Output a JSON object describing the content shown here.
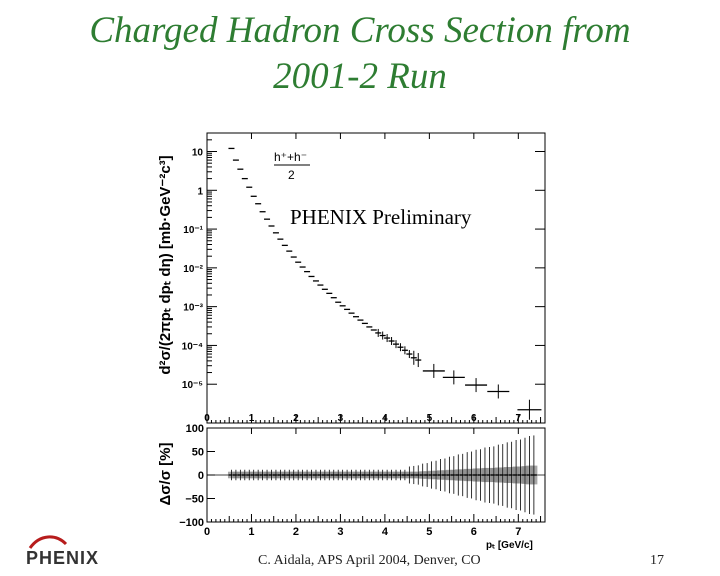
{
  "slide": {
    "title_line1": "Charged Hadron Cross Section from",
    "title_line2": "2001-2 Run",
    "footer_center": "C. Aidala, APS April 2004, Denver, CO",
    "page_number": "17",
    "logo_text": "PHENIX"
  },
  "colors": {
    "title": "#2e7d32",
    "logo_red": "#b71c1c",
    "logo_gray": "#888888",
    "axis": "#000000"
  },
  "chart_data": [
    {
      "type": "scatter",
      "panel": "top",
      "annotation": "PHENIX Preliminary",
      "legend_numerator": "h⁺+h⁻",
      "legend_denominator": "2",
      "ylabel": "d²σ/(2πpₜ dpₜ dη) [mb·GeV⁻²c³]",
      "yscale": "log",
      "xlim": [
        0,
        7.6
      ],
      "ylim": [
        1e-06,
        30
      ],
      "xticks": [
        "0",
        "1",
        "2",
        "3",
        "4",
        "5",
        "6",
        "7"
      ],
      "yticks": [
        {
          "value": 10,
          "label": "10"
        },
        {
          "value": 1,
          "label": "1"
        },
        {
          "value": 0.1,
          "label": "10⁻¹"
        },
        {
          "value": 0.01,
          "label": "10⁻²"
        },
        {
          "value": 0.001,
          "label": "10⁻³"
        },
        {
          "value": 0.0001,
          "label": "10⁻⁴"
        },
        {
          "value": 1e-05,
          "label": "10⁻⁵"
        }
      ],
      "x": [
        0.55,
        0.65,
        0.75,
        0.85,
        0.95,
        1.05,
        1.15,
        1.25,
        1.35,
        1.45,
        1.55,
        1.65,
        1.75,
        1.85,
        1.95,
        2.05,
        2.15,
        2.25,
        2.35,
        2.45,
        2.55,
        2.65,
        2.75,
        2.85,
        2.95,
        3.05,
        3.15,
        3.25,
        3.35,
        3.45,
        3.55,
        3.65,
        3.75,
        3.85,
        3.95,
        4.05,
        4.15,
        4.25,
        4.35,
        4.45,
        4.55,
        4.65,
        4.75,
        5.1,
        5.55,
        6.05,
        6.55,
        7.25
      ],
      "y": [
        12,
        6.0,
        3.5,
        2.0,
        1.2,
        0.7,
        0.45,
        0.28,
        0.18,
        0.12,
        0.08,
        0.055,
        0.038,
        0.027,
        0.019,
        0.014,
        0.0105,
        0.008,
        0.006,
        0.0046,
        0.0036,
        0.0028,
        0.0022,
        0.0017,
        0.0013,
        0.00105,
        0.00085,
        0.00068,
        0.00055,
        0.00045,
        0.00037,
        0.0003,
        0.00025,
        0.00021,
        0.00018,
        0.000155,
        0.00013,
        0.000108,
        9e-05,
        7.5e-05,
        6e-05,
        4.8e-05,
        4.2e-05,
        2.2e-05,
        1.5e-05,
        9.5e-06,
        6.5e-06,
        2.2e-06
      ]
    },
    {
      "type": "scatter",
      "panel": "bottom",
      "ylabel": "Δσ/σ [%]",
      "xlabel": "pₜ [GeV/c]",
      "xlim": [
        0,
        7.6
      ],
      "ylim": [
        -100,
        100
      ],
      "xticks": [
        "0",
        "1",
        "2",
        "3",
        "4",
        "5",
        "6",
        "7"
      ],
      "yticks": [
        {
          "value": 100,
          "label": "100"
        },
        {
          "value": 50,
          "label": "50"
        },
        {
          "value": 0,
          "label": "0"
        },
        {
          "value": -50,
          "label": "−50"
        },
        {
          "value": -100,
          "label": "−100"
        }
      ],
      "x": [
        0.55,
        0.65,
        0.75,
        0.85,
        0.95,
        1.05,
        1.15,
        1.25,
        1.35,
        1.45,
        1.55,
        1.65,
        1.75,
        1.85,
        1.95,
        2.05,
        2.15,
        2.25,
        2.35,
        2.45,
        2.55,
        2.65,
        2.75,
        2.85,
        2.95,
        3.05,
        3.15,
        3.25,
        3.35,
        3.45,
        3.55,
        3.65,
        3.75,
        3.85,
        3.95,
        4.05,
        4.15,
        4.25,
        4.35,
        4.45,
        4.55,
        4.65,
        4.75,
        4.85,
        4.95,
        5.05,
        5.15,
        5.25,
        5.35,
        5.45,
        5.55,
        5.65,
        5.75,
        5.85,
        5.95,
        6.05,
        6.15,
        6.25,
        6.35,
        6.45,
        6.55,
        6.65,
        6.75,
        6.85,
        6.95,
        7.05,
        7.15,
        7.25,
        7.35
      ],
      "y": [
        0,
        0,
        0,
        0,
        0,
        0,
        0,
        0,
        0,
        0,
        0,
        0,
        0,
        0,
        0,
        0,
        0,
        0,
        0,
        0,
        0,
        0,
        0,
        0,
        0,
        0,
        0,
        0,
        0,
        0,
        0,
        0,
        0,
        0,
        0,
        0,
        0,
        0,
        0,
        0,
        0,
        0,
        0,
        0,
        0,
        0,
        0,
        0,
        0,
        0,
        0,
        0,
        0,
        0,
        0,
        0,
        0,
        0,
        0,
        0,
        0,
        0,
        0,
        0,
        0,
        0,
        0,
        0,
        0
      ],
      "band_pct": [
        7,
        7,
        7,
        7,
        7,
        7,
        7,
        7,
        7,
        7,
        7,
        7,
        7,
        7,
        7,
        7,
        7,
        7,
        7,
        7,
        7,
        7,
        7,
        7,
        7,
        7,
        7,
        7,
        7,
        7,
        7,
        7,
        7,
        7,
        7,
        7,
        7,
        7,
        7,
        7,
        7,
        7,
        7,
        8,
        8,
        9,
        9,
        10,
        10,
        11,
        11,
        12,
        12,
        13,
        13,
        14,
        14,
        15,
        15,
        15,
        16,
        16,
        17,
        17,
        18,
        18,
        19,
        20,
        20
      ]
    }
  ]
}
